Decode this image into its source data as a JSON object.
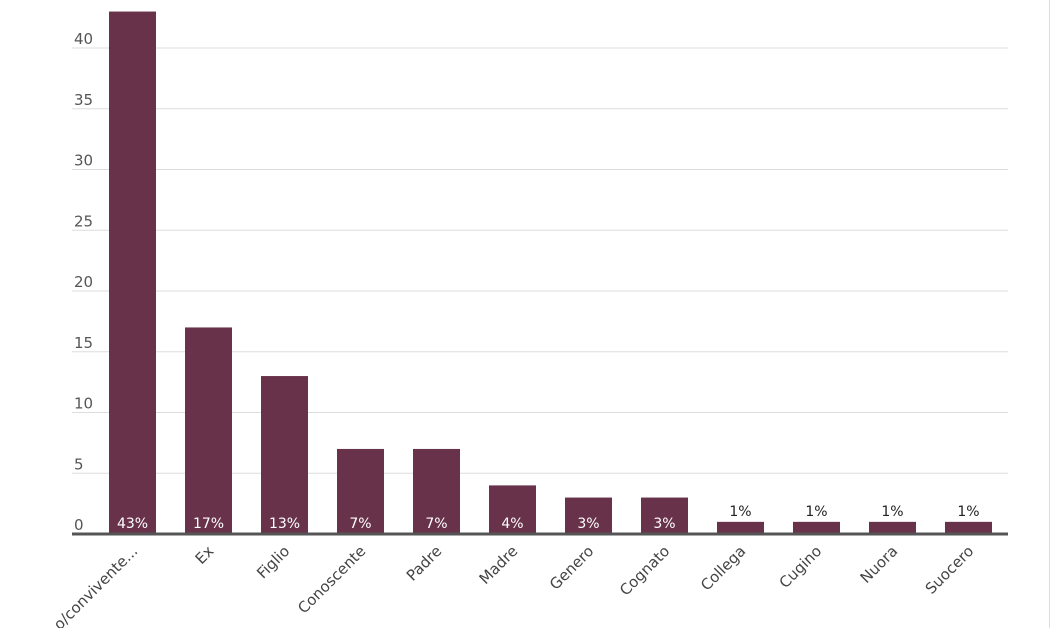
{
  "chart_data": {
    "type": "bar",
    "categories": [
      "o/convivente...",
      "Ex",
      "Figlio",
      "Conoscente",
      "Padre",
      "Madre",
      "Genero",
      "Cognato",
      "Collega",
      "Cugino",
      "Nuora",
      "Suocero"
    ],
    "values": [
      43,
      17,
      13,
      7,
      7,
      4,
      3,
      3,
      1,
      1,
      1,
      1
    ],
    "data_labels": [
      "43%",
      "17%",
      "13%",
      "7%",
      "7%",
      "4%",
      "3%",
      "3%",
      "1%",
      "1%",
      "1%",
      "1%"
    ],
    "yticks": [
      0,
      5,
      10,
      15,
      20,
      25,
      30,
      35,
      40
    ],
    "ylim": [
      0,
      43
    ],
    "grid": true,
    "colors": {
      "bar": "#68324a",
      "grid": "#dddddd",
      "baseline": "#555555",
      "label_inside": "#ffffff",
      "label_outside": "#222222"
    }
  }
}
